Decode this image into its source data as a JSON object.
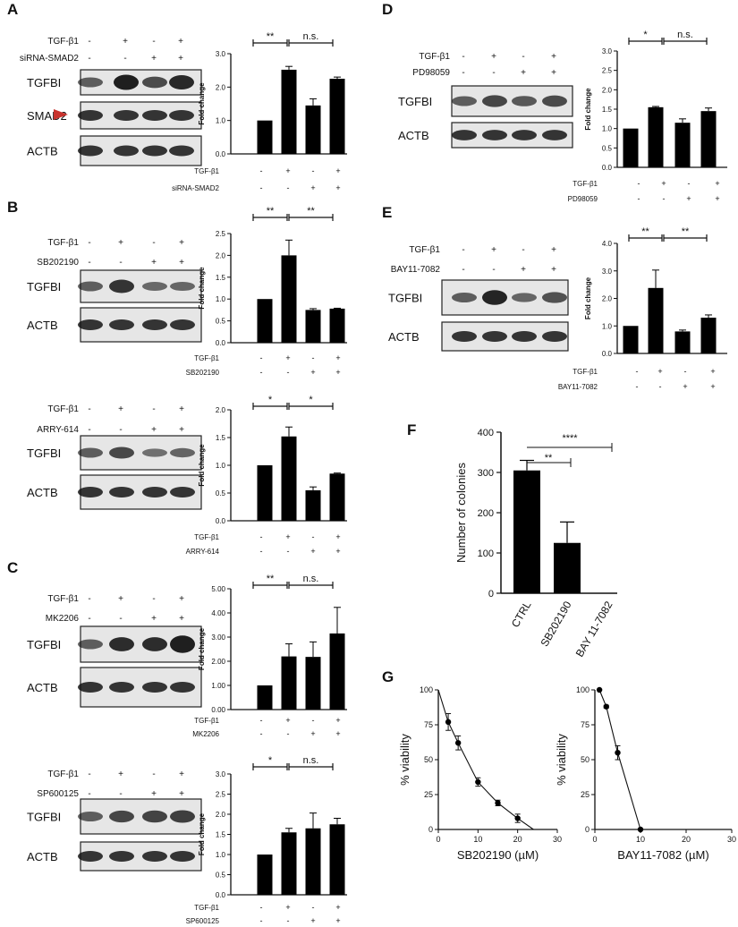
{
  "panels": [
    {
      "letter": "A",
      "rows": [
        "TGF-β1",
        "siRNA-SMAD2"
      ],
      "signs": [
        [
          "-",
          "+",
          "-",
          "+"
        ],
        [
          "-",
          "-",
          "+",
          "+"
        ]
      ],
      "blots": [
        "TGFBI",
        "SMAD2",
        "ACTB"
      ],
      "ylabel": "Fold change",
      "yticks": [
        "0.0",
        "1.0",
        "2.0",
        "3.0"
      ],
      "sig": [
        "**",
        "n.s."
      ],
      "xrows": [
        "TGF-β1",
        "siRNA-SMAD2"
      ]
    },
    {
      "letter": "B",
      "rows": [
        "TGF-β1",
        "SB202190"
      ],
      "signs": [
        [
          "-",
          "+",
          "-",
          "+"
        ],
        [
          "-",
          "-",
          "+",
          "+"
        ]
      ],
      "blots": [
        "TGFBI",
        "ACTB"
      ],
      "ylabel": "Fold change",
      "yticks": [
        "0.0",
        "0.5",
        "1.0",
        "1.5",
        "2.0",
        "2.5"
      ],
      "sig": [
        "**",
        "**"
      ],
      "xrows": [
        "TGF-β1",
        "SB202190"
      ]
    },
    {
      "letter": "",
      "rows": [
        "TGF-β1",
        "ARRY-614"
      ],
      "signs": [
        [
          "-",
          "+",
          "-",
          "+"
        ],
        [
          "-",
          "-",
          "+",
          "+"
        ]
      ],
      "blots": [
        "TGFBI",
        "ACTB"
      ],
      "ylabel": "Fold change",
      "yticks": [
        "0.0",
        "0.5",
        "1.0",
        "1.5",
        "2.0"
      ],
      "sig": [
        "*",
        "*"
      ],
      "xrows": [
        "TGF-β1",
        "ARRY-614"
      ]
    },
    {
      "letter": "C",
      "rows": [
        "TGF-β1",
        "MK2206"
      ],
      "signs": [
        [
          "-",
          "+",
          "-",
          "+"
        ],
        [
          "-",
          "-",
          "+",
          "+"
        ]
      ],
      "blots": [
        "TGFBI",
        "ACTB"
      ],
      "ylabel": "Fold change",
      "yticks": [
        "0.00",
        "1.00",
        "2.00",
        "3.00",
        "4.00",
        "5.00"
      ],
      "sig": [
        "**",
        "n.s."
      ],
      "xrows": [
        "TGF-β1",
        "MK2206"
      ]
    },
    {
      "letter": "",
      "rows": [
        "TGF-β1",
        "SP600125"
      ],
      "signs": [
        [
          "-",
          "+",
          "-",
          "+"
        ],
        [
          "-",
          "-",
          "+",
          "+"
        ]
      ],
      "blots": [
        "TGFBI",
        "ACTB"
      ],
      "ylabel": "Fold change",
      "yticks": [
        "0.0",
        "0.5",
        "1.0",
        "1.5",
        "2.0",
        "2.5",
        "3.0"
      ],
      "sig": [
        "*",
        "n.s."
      ],
      "xrows": [
        "TGF-β1",
        "SP600125"
      ]
    },
    {
      "letter": "D",
      "rows": [
        "TGF-β1",
        "PD98059"
      ],
      "signs": [
        [
          "-",
          "+",
          "-",
          "+"
        ],
        [
          "-",
          "-",
          "+",
          "+"
        ]
      ],
      "blots": [
        "TGFBI",
        "ACTB"
      ],
      "ylabel": "Fold change",
      "yticks": [
        "0.0",
        "0.5",
        "1.0",
        "1.5",
        "2.0",
        "2.5",
        "3.0"
      ],
      "sig": [
        "*",
        "n.s."
      ],
      "xrows": [
        "TGF-β1",
        "PD98059"
      ]
    },
    {
      "letter": "E",
      "rows": [
        "TGF-β1",
        "BAY11-7082"
      ],
      "signs": [
        [
          "-",
          "+",
          "-",
          "+"
        ],
        [
          "-",
          "-",
          "+",
          "+"
        ]
      ],
      "blots": [
        "TGFBI",
        "ACTB"
      ],
      "ylabel": "Fold change",
      "yticks": [
        "0.0",
        "1.0",
        "2.0",
        "3.0",
        "4.0"
      ],
      "sig": [
        "**",
        "**"
      ],
      "xrows": [
        "TGF-β1",
        "BAY11-7082"
      ]
    },
    {
      "letter": "F",
      "ylabel": "Number of colonies",
      "yticks": [
        "0",
        "100",
        "200",
        "300",
        "400"
      ],
      "sig": [
        "**",
        "****"
      ]
    },
    {
      "letter": "G"
    }
  ],
  "chart_data": [
    {
      "type": "bar",
      "panel": "A",
      "categories": [
        "1",
        "2",
        "3",
        "4"
      ],
      "values": [
        1.0,
        2.52,
        1.45,
        2.25
      ],
      "errors": [
        0,
        0.1,
        0.2,
        0.05
      ],
      "ylabel": "Fold change",
      "ylim": [
        0,
        3
      ]
    },
    {
      "type": "bar",
      "panel": "B",
      "categories": [
        "1",
        "2",
        "3",
        "4"
      ],
      "values": [
        1.0,
        2.0,
        0.75,
        0.78
      ],
      "errors": [
        0,
        0.35,
        0.03,
        0.01
      ],
      "ylabel": "Fold change",
      "ylim": [
        0,
        2.5
      ]
    },
    {
      "type": "bar",
      "panel": "B-ARRY-614",
      "categories": [
        "1",
        "2",
        "3",
        "4"
      ],
      "values": [
        1.0,
        1.52,
        0.55,
        0.85
      ],
      "errors": [
        0,
        0.17,
        0.06,
        0.01
      ],
      "ylabel": "Fold change",
      "ylim": [
        0,
        2
      ]
    },
    {
      "type": "bar",
      "panel": "C",
      "categories": [
        "1",
        "2",
        "3",
        "4"
      ],
      "values": [
        1.0,
        2.2,
        2.18,
        3.15
      ],
      "errors": [
        0,
        0.52,
        0.62,
        1.08
      ],
      "ylabel": "Fold change",
      "ylim": [
        0,
        5
      ]
    },
    {
      "type": "bar",
      "panel": "C-SP600125",
      "categories": [
        "1",
        "2",
        "3",
        "4"
      ],
      "values": [
        1.0,
        1.55,
        1.65,
        1.75
      ],
      "errors": [
        0,
        0.1,
        0.38,
        0.15
      ],
      "ylabel": "Fold change",
      "ylim": [
        0,
        3
      ]
    },
    {
      "type": "bar",
      "panel": "D",
      "categories": [
        "1",
        "2",
        "3",
        "4"
      ],
      "values": [
        1.0,
        1.55,
        1.15,
        1.45
      ],
      "errors": [
        0,
        0.02,
        0.1,
        0.08
      ],
      "ylabel": "Fold change",
      "ylim": [
        0,
        3
      ]
    },
    {
      "type": "bar",
      "panel": "E",
      "categories": [
        "1",
        "2",
        "3",
        "4"
      ],
      "values": [
        1.0,
        2.38,
        0.8,
        1.3
      ],
      "errors": [
        0,
        0.65,
        0.05,
        0.1
      ],
      "ylabel": "Fold change",
      "ylim": [
        0,
        4
      ]
    },
    {
      "type": "bar",
      "panel": "F",
      "categories": [
        "CTRL",
        "SB202190",
        "BAY 11-7082"
      ],
      "values": [
        305,
        125,
        0
      ],
      "errors": [
        25,
        52,
        0
      ],
      "ylabel": "Number of colonies",
      "ylim": [
        0,
        400
      ]
    },
    {
      "type": "line",
      "panel": "G",
      "xlabel": "SB202190 (µM)",
      "ylabel": "% viability",
      "x": [
        2.5,
        5,
        10,
        15,
        20
      ],
      "y": [
        77,
        62,
        34,
        19,
        8
      ],
      "errors": [
        6,
        5,
        3,
        2,
        3
      ],
      "xlim": [
        0,
        30
      ],
      "ylim": [
        0,
        100
      ],
      "xticks": [
        0,
        10,
        20,
        30
      ],
      "yticks": [
        0,
        25,
        50,
        75,
        100
      ]
    },
    {
      "type": "line",
      "panel": "G",
      "xlabel": "BAY11-7082 (µM)",
      "ylabel": "% viability",
      "x": [
        1,
        2.5,
        5,
        10
      ],
      "y": [
        100,
        88,
        55,
        0
      ],
      "errors": [
        0,
        1,
        5,
        0
      ],
      "xlim": [
        0,
        30
      ],
      "ylim": [
        0,
        100
      ],
      "xticks": [
        0,
        10,
        20,
        30
      ],
      "yticks": [
        0,
        25,
        50,
        75,
        100
      ]
    }
  ]
}
